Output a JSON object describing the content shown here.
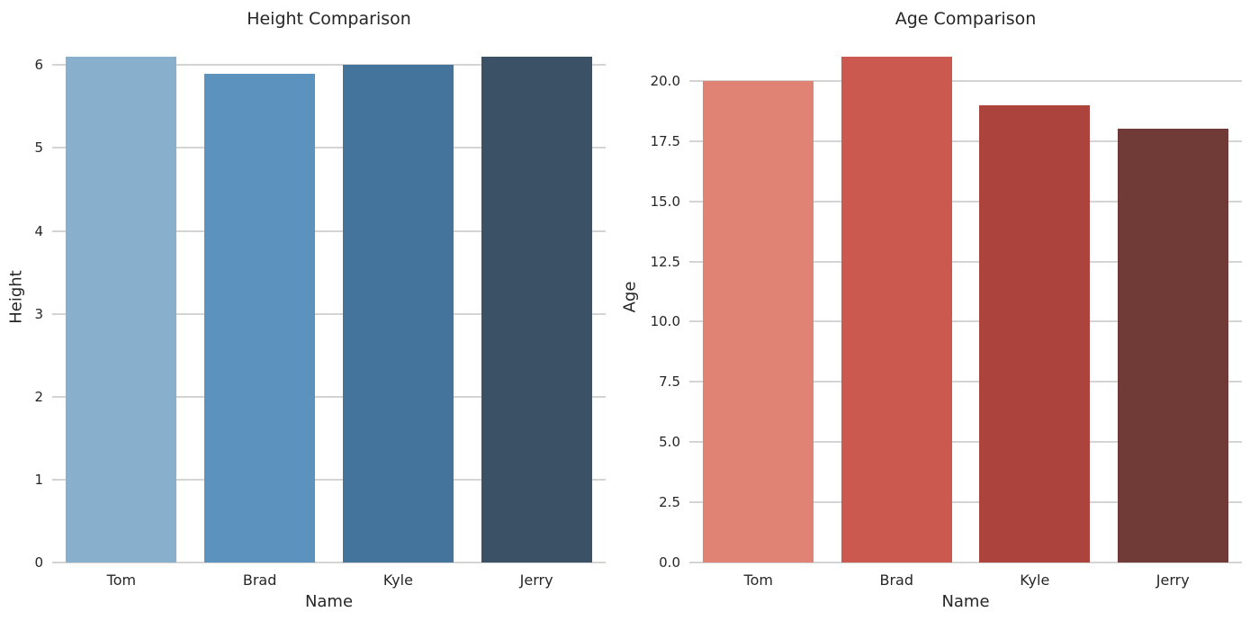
{
  "figure": {
    "background": "#ffffff",
    "text_color": "#262626",
    "grid_color": "#d4d4d4"
  },
  "chart_data": [
    {
      "type": "bar",
      "title": "Height Comparison",
      "xlabel": "Name",
      "ylabel": "Height",
      "categories": [
        "Tom",
        "Brad",
        "Kyle",
        "Jerry"
      ],
      "values": [
        6.1,
        5.9,
        6.0,
        6.1
      ],
      "bar_colors": [
        "#88AFCC",
        "#5C92BE",
        "#44749C",
        "#3B5166"
      ],
      "ylim": [
        0,
        6.405
      ],
      "yticks": [
        0,
        1,
        2,
        3,
        4,
        5,
        6
      ],
      "ytick_labels": [
        "0",
        "1",
        "2",
        "3",
        "4",
        "5",
        "6"
      ],
      "grid": "y",
      "legend": "none"
    },
    {
      "type": "bar",
      "title": "Age Comparison",
      "xlabel": "Name",
      "ylabel": "Age",
      "categories": [
        "Tom",
        "Brad",
        "Kyle",
        "Jerry"
      ],
      "values": [
        20,
        21,
        19,
        18
      ],
      "bar_colors": [
        "#E08274",
        "#CB5950",
        "#AC433D",
        "#703B37"
      ],
      "ylim": [
        0,
        22.05
      ],
      "yticks": [
        0,
        2.5,
        5,
        7.5,
        10,
        12.5,
        15,
        17.5,
        20
      ],
      "ytick_labels": [
        "0.0",
        "2.5",
        "5.0",
        "7.5",
        "10.0",
        "12.5",
        "15.0",
        "17.5",
        "20.0"
      ],
      "grid": "y",
      "legend": "none"
    }
  ]
}
